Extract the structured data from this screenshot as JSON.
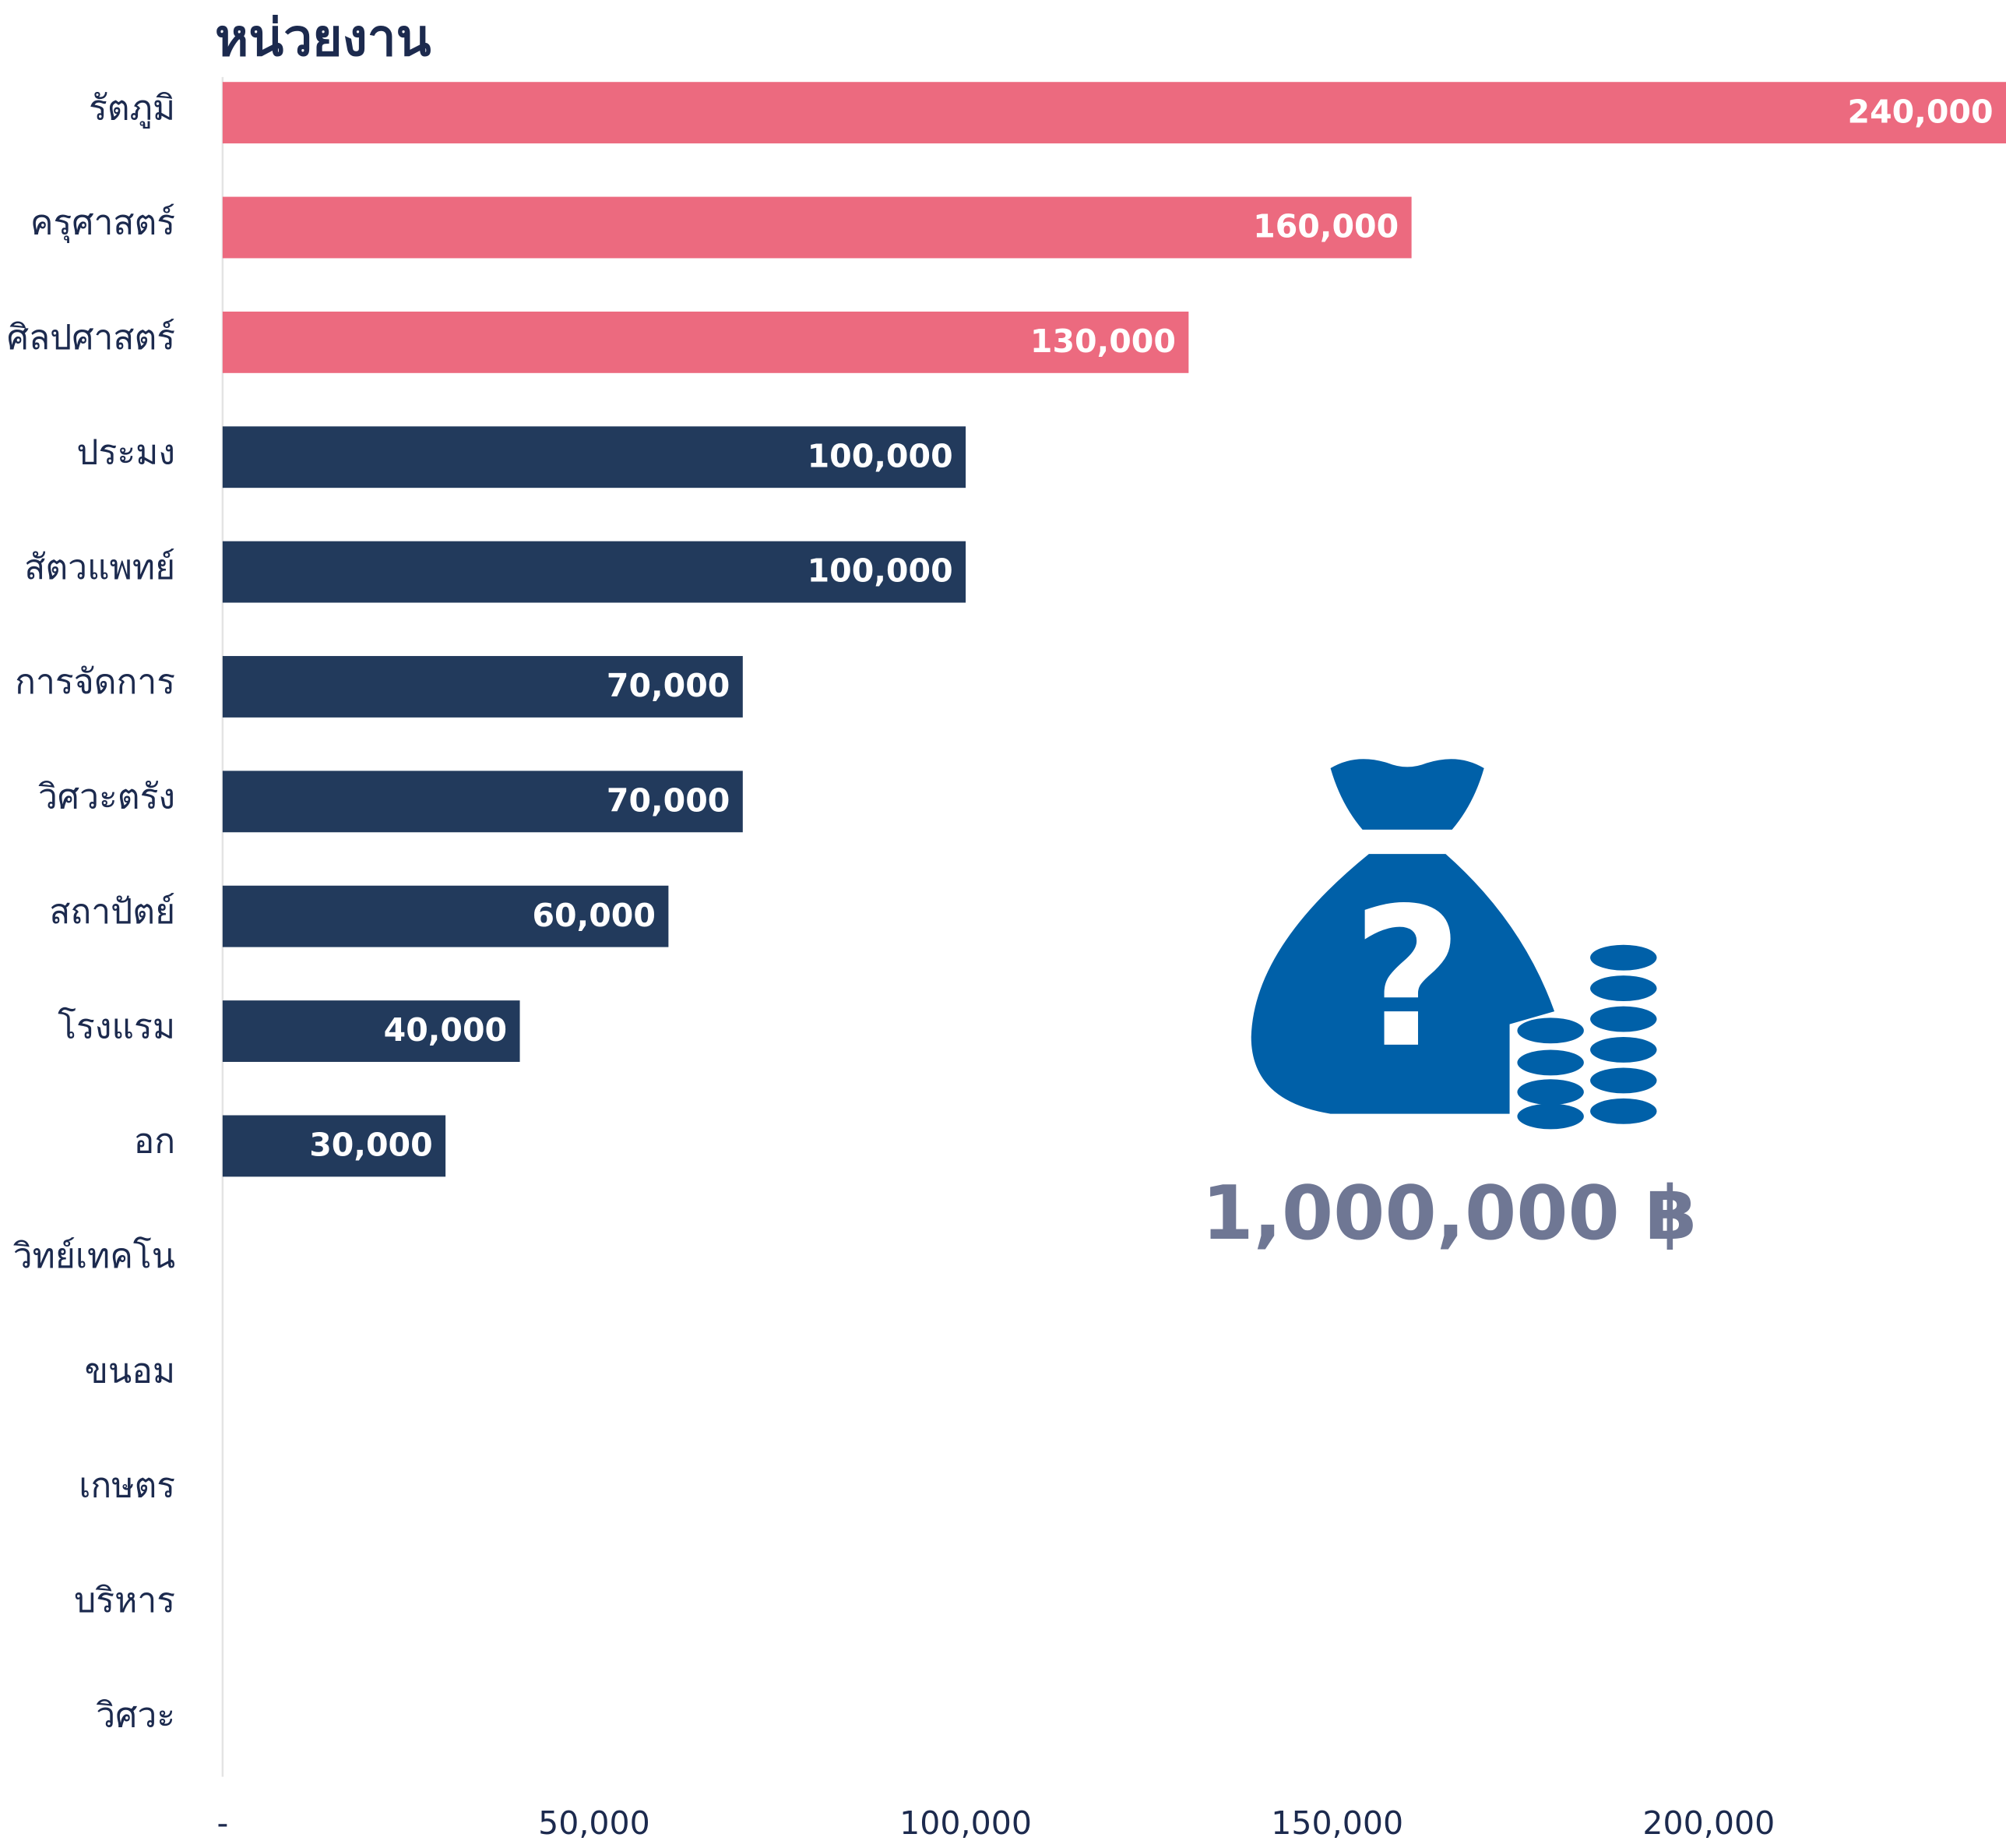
{
  "chart_data": {
    "type": "barh",
    "title": "หน่วยงาน",
    "categories": [
      "รัตภูมิ",
      "ครุศาสตร์",
      "ศิลปศาสตร์",
      "ประมง",
      "สัตวแพทย์",
      "การจัดการ",
      "วิศวะตรัง",
      "สถาปัตย์",
      "โรงแรม",
      "อก",
      "วิทย์เทคโน",
      "ขนอม",
      "เกษตร",
      "บริหาร",
      "วิศวะ"
    ],
    "values": [
      240000,
      160000,
      130000,
      100000,
      100000,
      70000,
      70000,
      60000,
      40000,
      30000,
      null,
      null,
      null,
      null,
      null
    ],
    "value_labels": [
      "240,000",
      "160,000",
      "130,000",
      "100,000",
      "100,000",
      "70,000",
      "70,000",
      "60,000",
      "40,000",
      "30,000",
      null,
      null,
      null,
      null,
      null
    ],
    "colors": [
      "#ec6a7f",
      "#ec6a7f",
      "#ec6a7f",
      "#223a5c",
      "#223a5c",
      "#223a5c",
      "#223a5c",
      "#223a5c",
      "#223a5c",
      "#223a5c",
      "#223a5c",
      "#223a5c",
      "#223a5c",
      "#223a5c",
      "#223a5c"
    ],
    "xlim": [
      0,
      240000
    ],
    "xticks": [
      {
        "value": 0,
        "label": "-"
      },
      {
        "value": 50000,
        "label": "50,000"
      },
      {
        "value": 100000,
        "label": "100,000"
      },
      {
        "value": 150000,
        "label": "150,000"
      },
      {
        "value": 200000,
        "label": "200,000"
      }
    ],
    "annotation": "1,000,000 ฿"
  }
}
